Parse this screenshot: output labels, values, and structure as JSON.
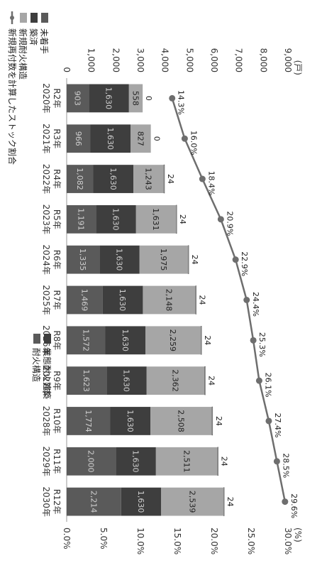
{
  "chart_data": {
    "type": "bar",
    "stacked": true,
    "title": "",
    "unit_left": "(戸)",
    "unit_right": "(%)",
    "categories": [
      {
        "era": "R2年",
        "year": "2020年"
      },
      {
        "era": "R3年",
        "year": "2021年"
      },
      {
        "era": "R4年",
        "year": "2022年"
      },
      {
        "era": "R5年",
        "year": "2023年"
      },
      {
        "era": "R6年",
        "year": "2024年"
      },
      {
        "era": "R7年",
        "year": "2025年"
      },
      {
        "era": "R8年",
        "year": "2026年"
      },
      {
        "era": "R9年",
        "year": "2027年"
      },
      {
        "era": "R10年",
        "year": "2028年"
      },
      {
        "era": "R11年",
        "year": "2029年"
      },
      {
        "era": "R12年",
        "year": "2030年"
      }
    ],
    "series": [
      {
        "name": "",
        "color": "#5a5a5a",
        "values": [
          903,
          966,
          1082,
          1191,
          1335,
          1469,
          1572,
          1623,
          1774,
          2000,
          2214
        ]
      },
      {
        "name": "",
        "color": "#3e3e3e",
        "values": [
          1630,
          1630,
          1630,
          1630,
          1630,
          1630,
          1630,
          1630,
          1630,
          1630,
          1630
        ]
      },
      {
        "name": "",
        "color": "#a6a6a6",
        "values": [
          558,
          827,
          1243,
          1631,
          1975,
          2148,
          2259,
          2362,
          2508,
          2511,
          2539
        ]
      },
      {
        "name": "",
        "color": "#ffffff",
        "values": [
          0,
          0,
          24,
          24,
          24,
          24,
          24,
          24,
          24,
          24,
          24
        ]
      }
    ],
    "line": {
      "name": "",
      "color": "#6e6e6e",
      "values": [
        14.3,
        16.0,
        18.4,
        20.9,
        22.9,
        24.4,
        25.3,
        26.1,
        27.4,
        28.5,
        29.6
      ],
      "labels": [
        "14.3%",
        "16.0%",
        "18.4%",
        "20.9%",
        "22.9%",
        "24.4%",
        "25.3%",
        "26.1%",
        "27.4%",
        "28.5%",
        "29.6%"
      ]
    },
    "y_left": {
      "min": 0,
      "max": 9000,
      "ticks": [
        "0",
        "1,000",
        "2,000",
        "3,000",
        "4,000",
        "5,000",
        "6,000",
        "7,000",
        "8,000",
        "9,000"
      ]
    },
    "y_right": {
      "min": 0,
      "max": 30,
      "ticks": [
        "0.0%",
        "5.0%",
        "10.0%",
        "15.0%",
        "20.0%",
        "25.0%",
        "30.0%"
      ]
    },
    "legend_left": [
      {
        "label": "未着手",
        "color": "#5a5a5a",
        "marker": "box"
      },
      {
        "label": "築済",
        "color": "#3e3e3e",
        "marker": "box"
      },
      {
        "label": "新規耐火構造",
        "color": "#a6a6a6",
        "marker": "box"
      },
      {
        "label": "新規再付数を計算したストック割合",
        "color": "#6e6e6e",
        "marker": "line"
      }
    ],
    "legend_right": [
      {
        "label": "業態耐火建築",
        "color": "#3e3e3e",
        "marker": "box"
      },
      {
        "label": "耐火構造",
        "color": "#5a5a5a",
        "marker": "box"
      }
    ]
  }
}
